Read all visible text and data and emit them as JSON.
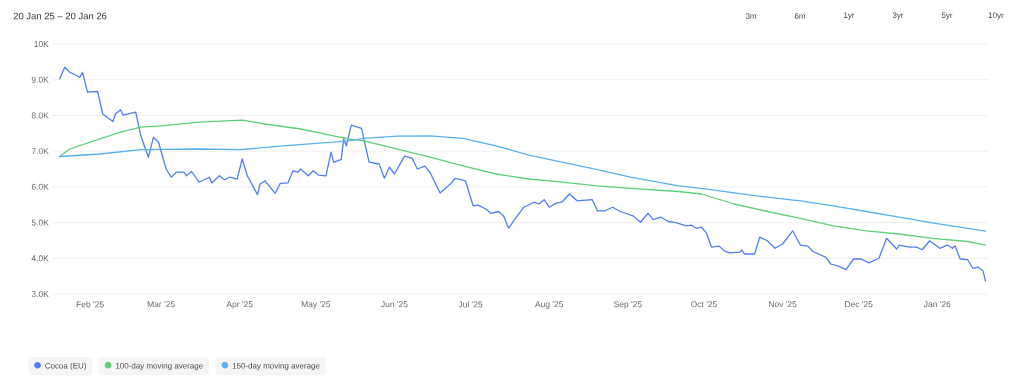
{
  "chart_data": {
    "type": "line",
    "title": "20 Jan 25 – 20 Jan 26",
    "annotations": [
      "3m",
      "6m",
      "1yr",
      "3yr",
      "5yr",
      "10yr"
    ],
    "xlim": [
      "2025-01-17",
      "2026-01-21"
    ],
    "xticks": [
      {
        "value": "2025-02-01",
        "label": "Feb '25"
      },
      {
        "value": "2025-03-01",
        "label": "Mar '25"
      },
      {
        "value": "2025-04-01",
        "label": "Apr '25"
      },
      {
        "value": "2025-05-01",
        "label": "May '25"
      },
      {
        "value": "2025-06-01",
        "label": "Jun '25"
      },
      {
        "value": "2025-07-01",
        "label": "Jul '25"
      },
      {
        "value": "2025-08-01",
        "label": "Aug '25"
      },
      {
        "value": "2025-09-01",
        "label": "Sep '25"
      },
      {
        "value": "2025-10-01",
        "label": "Oct '25"
      },
      {
        "value": "2025-11-01",
        "label": "Nov '25"
      },
      {
        "value": "2025-12-01",
        "label": "Dec '25"
      },
      {
        "value": "2026-01-01",
        "label": "Jan '26"
      }
    ],
    "ylim": [
      3000,
      10000
    ],
    "yticks": [
      {
        "value": 3000,
        "label": "3.0K"
      },
      {
        "value": 4000,
        "label": "4.0K"
      },
      {
        "value": 5000,
        "label": "5.0K"
      },
      {
        "value": 6000,
        "label": "6.0K"
      },
      {
        "value": 7000,
        "label": "7.0K"
      },
      {
        "value": 8000,
        "label": "8.0K"
      },
      {
        "value": 9000,
        "label": "9.0K"
      },
      {
        "value": 10000,
        "label": "10K"
      }
    ],
    "grid": "y",
    "legend": "bottom left",
    "series": [
      {
        "name": "Cocoa (EU)",
        "color": "#4f7ff0",
        "x": [
          "2025-01-20",
          "2025-01-22",
          "2025-01-24",
          "2025-01-28",
          "2025-01-29",
          "2025-01-31",
          "2025-02-04",
          "2025-02-06",
          "2025-02-10",
          "2025-02-11",
          "2025-02-13",
          "2025-02-14",
          "2025-02-19",
          "2025-02-21",
          "2025-02-24",
          "2025-02-26",
          "2025-02-28",
          "2025-03-03",
          "2025-03-05",
          "2025-03-07",
          "2025-03-10",
          "2025-03-11",
          "2025-03-13",
          "2025-03-16",
          "2025-03-20",
          "2025-03-21",
          "2025-03-24",
          "2025-03-26",
          "2025-03-28",
          "2025-03-31",
          "2025-04-02",
          "2025-04-04",
          "2025-04-08",
          "2025-04-09",
          "2025-04-11",
          "2025-04-15",
          "2025-04-17",
          "2025-04-20",
          "2025-04-22",
          "2025-04-24",
          "2025-04-25",
          "2025-04-28",
          "2025-04-30",
          "2025-05-02",
          "2025-05-05",
          "2025-05-07",
          "2025-05-08",
          "2025-05-11",
          "2025-05-12",
          "2025-05-13",
          "2025-05-15",
          "2025-05-19",
          "2025-05-22",
          "2025-05-26",
          "2025-05-28",
          "2025-05-30",
          "2025-06-01",
          "2025-06-05",
          "2025-06-08",
          "2025-06-10",
          "2025-06-13",
          "2025-06-15",
          "2025-06-19",
          "2025-06-23",
          "2025-06-25",
          "2025-06-29",
          "2025-07-02",
          "2025-07-04",
          "2025-07-07",
          "2025-07-09",
          "2025-07-12",
          "2025-07-14",
          "2025-07-16",
          "2025-07-18",
          "2025-07-22",
          "2025-07-26",
          "2025-07-28",
          "2025-07-30",
          "2025-08-01",
          "2025-08-04",
          "2025-08-06",
          "2025-08-09",
          "2025-08-12",
          "2025-08-18",
          "2025-08-20",
          "2025-08-23",
          "2025-08-26",
          "2025-08-29",
          "2025-09-03",
          "2025-09-06",
          "2025-09-09",
          "2025-09-11",
          "2025-09-14",
          "2025-09-17",
          "2025-09-20",
          "2025-09-24",
          "2025-09-26",
          "2025-09-28",
          "2025-09-30",
          "2025-10-02",
          "2025-10-04",
          "2025-10-07",
          "2025-10-09",
          "2025-10-11",
          "2025-10-15",
          "2025-10-16",
          "2025-10-17",
          "2025-10-21",
          "2025-10-23",
          "2025-10-26",
          "2025-10-29",
          "2025-11-01",
          "2025-11-05",
          "2025-11-08",
          "2025-11-11",
          "2025-11-13",
          "2025-11-18",
          "2025-11-20",
          "2025-11-23",
          "2025-11-26",
          "2025-11-29",
          "2025-12-02",
          "2025-12-05",
          "2025-12-09",
          "2025-12-12",
          "2025-12-16",
          "2025-12-17",
          "2025-12-21",
          "2025-12-24",
          "2025-12-26",
          "2025-12-29",
          "2026-01-02",
          "2026-01-05",
          "2026-01-07",
          "2026-01-08",
          "2026-01-10",
          "2026-01-13",
          "2026-01-15",
          "2026-01-17",
          "2026-01-19",
          "2026-01-20"
        ],
        "values": [
          9020,
          9350,
          9210,
          9070,
          9210,
          8650,
          8670,
          8040,
          7830,
          8040,
          8160,
          8010,
          8090,
          7430,
          6830,
          7390,
          7250,
          6500,
          6270,
          6410,
          6410,
          6310,
          6430,
          6130,
          6270,
          6110,
          6310,
          6200,
          6270,
          6220,
          6780,
          6310,
          5780,
          6080,
          6170,
          5820,
          6100,
          6110,
          6450,
          6410,
          6500,
          6310,
          6450,
          6330,
          6310,
          6970,
          6690,
          6760,
          7340,
          7150,
          7730,
          7640,
          6690,
          6640,
          6240,
          6550,
          6360,
          6860,
          6800,
          6500,
          6580,
          6410,
          5830,
          6080,
          6240,
          6170,
          5470,
          5490,
          5380,
          5260,
          5310,
          5190,
          4840,
          5050,
          5430,
          5570,
          5520,
          5640,
          5430,
          5550,
          5570,
          5800,
          5610,
          5640,
          5330,
          5330,
          5430,
          5310,
          5190,
          5010,
          5260,
          5080,
          5150,
          5030,
          5000,
          4910,
          4930,
          4840,
          4870,
          4710,
          4310,
          4340,
          4210,
          4150,
          4170,
          4230,
          4120,
          4120,
          4590,
          4490,
          4280,
          4400,
          4770,
          4370,
          4340,
          4190,
          4030,
          3840,
          3780,
          3680,
          3980,
          3980,
          3870,
          4000,
          4560,
          4260,
          4370,
          4310,
          4310,
          4240,
          4490,
          4280,
          4370,
          4280,
          4350,
          3980,
          3960,
          3720,
          3750,
          3650,
          3370
        ]
      },
      {
        "name": "100-day moving average",
        "color": "#5fcf7a",
        "x": [
          "2025-01-20",
          "2025-01-24",
          "2025-02-01",
          "2025-02-13",
          "2025-02-21",
          "2025-03-01",
          "2025-03-16",
          "2025-04-02",
          "2025-04-11",
          "2025-04-25",
          "2025-05-08",
          "2025-05-14",
          "2025-05-20",
          "2025-06-02",
          "2025-06-15",
          "2025-06-28",
          "2025-07-11",
          "2025-07-24",
          "2025-08-06",
          "2025-08-20",
          "2025-09-02",
          "2025-09-21",
          "2025-09-30",
          "2025-10-13",
          "2025-10-26",
          "2025-11-08",
          "2025-11-21",
          "2025-12-04",
          "2025-12-17",
          "2025-12-30",
          "2026-01-13",
          "2026-01-20"
        ],
        "values": [
          6850,
          7060,
          7250,
          7530,
          7670,
          7710,
          7810,
          7870,
          7760,
          7620,
          7430,
          7340,
          7290,
          7060,
          6830,
          6590,
          6360,
          6220,
          6130,
          6030,
          5960,
          5870,
          5800,
          5520,
          5310,
          5120,
          4910,
          4770,
          4680,
          4560,
          4470,
          4370
        ]
      },
      {
        "name": "150-day moving average",
        "color": "#5ab0ee",
        "x": [
          "2025-01-20",
          "2025-02-05",
          "2025-02-21",
          "2025-03-16",
          "2025-04-01",
          "2025-04-18",
          "2025-05-08",
          "2025-05-14",
          "2025-05-20",
          "2025-06-02",
          "2025-06-15",
          "2025-06-28",
          "2025-07-11",
          "2025-07-24",
          "2025-08-06",
          "2025-08-20",
          "2025-09-02",
          "2025-09-21",
          "2025-09-30",
          "2025-10-13",
          "2025-10-26",
          "2025-11-08",
          "2025-11-21",
          "2025-12-04",
          "2025-12-17",
          "2025-12-30",
          "2026-01-13",
          "2026-01-20"
        ],
        "values": [
          6850,
          6920,
          7040,
          7060,
          7040,
          7150,
          7250,
          7290,
          7360,
          7420,
          7430,
          7360,
          7150,
          6890,
          6690,
          6480,
          6270,
          6030,
          5960,
          5830,
          5710,
          5610,
          5470,
          5310,
          5150,
          4990,
          4840,
          4760
        ]
      }
    ]
  }
}
